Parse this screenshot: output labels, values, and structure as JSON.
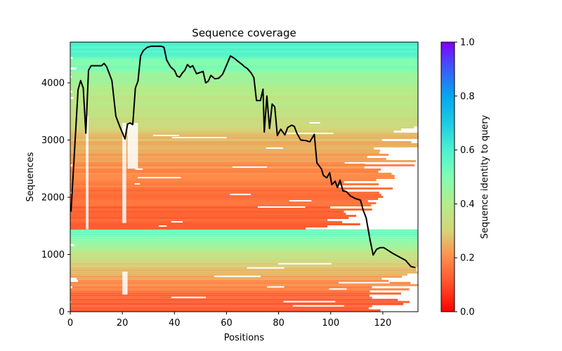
{
  "chart_data": {
    "type": "heatmap",
    "title": "Sequence coverage",
    "xlabel": "Positions",
    "ylabel": "Sequences",
    "xlim": [
      0,
      133.5
    ],
    "ylim": [
      0,
      4712
    ],
    "xticks": [
      0,
      20,
      40,
      60,
      80,
      100,
      120
    ],
    "yticks": [
      0,
      1000,
      2000,
      3000,
      4000
    ],
    "grid": false,
    "colorbar": {
      "label": "Sequence identity to query",
      "colormap": "rainbow_r",
      "range": [
        0.0,
        1.0
      ],
      "ticks": [
        0.0,
        0.2,
        0.4,
        0.6,
        0.8,
        1.0
      ],
      "tick_labels": [
        "0.0",
        "0.2",
        "0.4",
        "0.6",
        "0.8",
        "1.0"
      ],
      "placement": "right"
    },
    "heatmap_blocks": [
      {
        "name": "lower-block",
        "seq_range": [
          0,
          1440
        ],
        "identity_top": 0.55,
        "identity_bottom": 0.12,
        "coverage_end_top": 133,
        "coverage_end_bottom": 110
      },
      {
        "name": "upper-block",
        "seq_range": [
          1440,
          4712
        ],
        "identity_top": 0.58,
        "identity_bottom": 0.13,
        "coverage_end_top": 133,
        "coverage_end_bottom": 95
      }
    ],
    "coverage_line": {
      "name": "Coverage",
      "color": "#000000",
      "x": [
        0.3,
        3,
        4,
        5,
        6,
        7,
        8,
        10,
        12,
        13,
        14,
        15,
        16,
        17.5,
        19,
        21,
        22,
        23,
        24,
        25,
        26,
        27,
        28,
        29.5,
        31,
        35,
        36,
        37,
        38.5,
        40,
        41,
        42,
        43,
        44,
        45,
        46,
        47,
        48.5,
        51,
        52,
        53,
        54,
        55.5,
        57,
        58.5,
        60,
        61.5,
        63,
        64,
        66,
        67,
        68,
        69.5,
        70.5,
        71.5,
        73,
        74,
        74.5,
        75.5,
        76.5,
        77.5,
        78.5,
        79.5,
        80.8,
        82.4,
        83.5,
        85,
        86,
        87,
        88.5,
        90.5,
        92,
        93.7,
        94.7,
        96.4,
        97.2,
        98.5,
        99.6,
        100.4,
        101.7,
        102.6,
        103.6,
        104.7,
        106,
        107.7,
        109.3,
        111.4,
        112.5,
        113.6,
        115,
        116.3,
        117.6,
        119,
        120.3,
        121.4,
        123.8,
        126.2,
        128.7,
        130.8,
        132.5
      ],
      "y": [
        1750,
        3880,
        4040,
        3910,
        3120,
        4220,
        4300,
        4300,
        4300,
        4340,
        4280,
        4160,
        4040,
        3420,
        3240,
        3020,
        3280,
        3300,
        3270,
        3910,
        4030,
        4470,
        4560,
        4620,
        4640,
        4640,
        4620,
        4400,
        4280,
        4220,
        4120,
        4100,
        4170,
        4220,
        4320,
        4270,
        4300,
        4160,
        4200,
        4000,
        4030,
        4130,
        4070,
        4080,
        4150,
        4310,
        4470,
        4430,
        4390,
        4320,
        4280,
        4250,
        4170,
        4090,
        3690,
        3690,
        3890,
        3140,
        3770,
        3200,
        3630,
        3580,
        3080,
        3190,
        3090,
        3220,
        3260,
        3240,
        3120,
        3000,
        2990,
        2970,
        3100,
        2600,
        2500,
        2380,
        2340,
        2430,
        2220,
        2280,
        2170,
        2300,
        2110,
        2100,
        2020,
        1980,
        1950,
        1770,
        1640,
        1280,
        990,
        1090,
        1120,
        1120,
        1090,
        1020,
        960,
        900,
        790,
        770
      ]
    }
  }
}
